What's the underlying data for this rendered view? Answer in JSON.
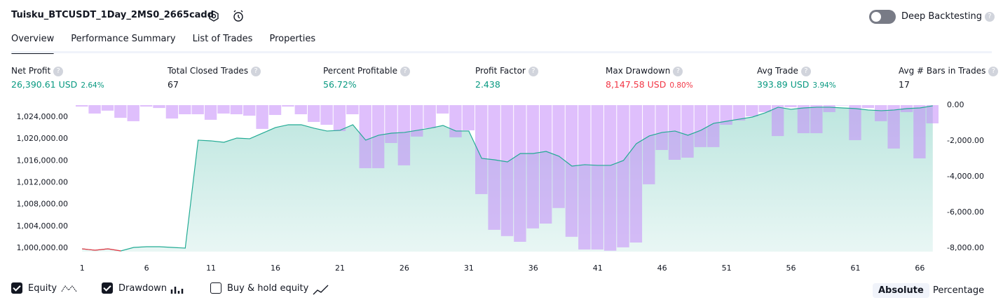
{
  "header": {
    "title": "Tuisku_BTCUSDT_1Day_2MS0_2665cadd",
    "toggle_label": "Deep Backtesting"
  },
  "tabs": [
    "Overview",
    "Performance Summary",
    "List of Trades",
    "Properties"
  ],
  "stats": [
    {
      "label": "Net Profit",
      "value": "26,390.61 USD",
      "percent": "2.64%",
      "color": "#089981"
    },
    {
      "label": "Total Closed Trades",
      "value": "67",
      "color": "#131722"
    },
    {
      "label": "Percent Profitable",
      "value": "56.72%",
      "color": "#089981"
    },
    {
      "label": "Profit Factor",
      "value": "2.438",
      "color": "#089981"
    },
    {
      "label": "Max Drawdown",
      "value": "8,147.58 USD",
      "percent": "0.80%",
      "color": "#f23645"
    },
    {
      "label": "Avg Trade",
      "value": "393.89 USD",
      "percent": "3.94%",
      "color": "#089981"
    },
    {
      "label": "Avg # Bars in Trades",
      "value": "17",
      "color": "#131722"
    }
  ],
  "chart_data": {
    "type": "line",
    "x": [
      1,
      2,
      3,
      4,
      5,
      6,
      7,
      8,
      9,
      10,
      11,
      12,
      13,
      14,
      15,
      16,
      17,
      18,
      19,
      20,
      21,
      22,
      23,
      24,
      25,
      26,
      27,
      28,
      29,
      30,
      31,
      32,
      33,
      34,
      35,
      36,
      37,
      38,
      39,
      40,
      41,
      42,
      43,
      44,
      45,
      46,
      47,
      48,
      49,
      50,
      51,
      52,
      53,
      54,
      55,
      56,
      57,
      58,
      59,
      60,
      61,
      62,
      63,
      64,
      65,
      66,
      67
    ],
    "series": [
      {
        "name": "Equity",
        "color": "#22ab94",
        "values": [
          999870,
          999620,
          999870,
          999490,
          1000130,
          1000260,
          1000260,
          1000130,
          1000000,
          1019770,
          1019640,
          1019380,
          1020150,
          1020030,
          1021050,
          1022080,
          1022590,
          1022590,
          1021950,
          1021440,
          1021570,
          1022590,
          1019770,
          1020670,
          1021050,
          1021180,
          1021570,
          1021950,
          1022460,
          1021440,
          1021440,
          1016430,
          1016170,
          1015790,
          1017330,
          1017330,
          1017710,
          1016820,
          1015020,
          1015280,
          1015150,
          1015150,
          1016050,
          1019130,
          1020540,
          1021180,
          1021440,
          1020670,
          1021570,
          1022850,
          1023230,
          1023620,
          1024000,
          1024780,
          1025800,
          1025420,
          1025670,
          1025800,
          1025800,
          1025670,
          1025550,
          1025290,
          1025160,
          1025290,
          1025550,
          1025670,
          1026060
        ]
      },
      {
        "name": "Drawdown",
        "color": "#c58af9",
        "axis": "y2",
        "type": "bar",
        "values": [
          -80,
          -470,
          -310,
          -710,
          -900,
          -80,
          -160,
          -750,
          -510,
          -510,
          -820,
          -470,
          -510,
          -590,
          -1330,
          -550,
          -80,
          -510,
          -940,
          -1100,
          -1450,
          -510,
          -3530,
          -3530,
          -2120,
          -3370,
          -1760,
          -1290,
          -470,
          -1800,
          -1410,
          -4980,
          -6980,
          -7330,
          -7650,
          -6900,
          -6630,
          -5760,
          -7370,
          -8080,
          -8080,
          -8148,
          -7960,
          -7690,
          -4430,
          -2510,
          -3060,
          -2940,
          -2350,
          -2350,
          -1100,
          -860,
          -630,
          -390,
          -1730,
          -120,
          -1570,
          -1570,
          -390,
          -20,
          -1960,
          -160,
          -900,
          -2430,
          -390,
          -2980,
          -1020
        ]
      }
    ],
    "xlim": [
      0.5,
      67.5
    ],
    "xticks": [
      1,
      6,
      11,
      16,
      21,
      26,
      31,
      36,
      41,
      46,
      51,
      56,
      61,
      66
    ],
    "ylim": [
      999360,
      1026180
    ],
    "yticks": [
      {
        "value": 1000000,
        "label": "1,000,000.00"
      },
      {
        "value": 1004000,
        "label": "1,004,000.00"
      },
      {
        "value": 1008000,
        "label": "1,008,000.00"
      },
      {
        "value": 1012000,
        "label": "1,012,000.00"
      },
      {
        "value": 1016000,
        "label": "1,016,000.00"
      },
      {
        "value": 1020000,
        "label": "1,020,000.00"
      },
      {
        "value": 1024000,
        "label": "1,024,000.00"
      }
    ],
    "y2lim": [
      -8200,
      0
    ],
    "y2ticks": [
      {
        "value": 0,
        "label": "0.00"
      },
      {
        "value": -2000,
        "label": "-2,000.00"
      },
      {
        "value": -4000,
        "label": "-4,000.00"
      },
      {
        "value": -6000,
        "label": "-6,000.00"
      },
      {
        "value": -8000,
        "label": "-8,000.00"
      }
    ],
    "loss_color": "#f23645"
  },
  "legend": [
    "Equity",
    "Drawdown",
    "Buy & hold equity"
  ],
  "modes": [
    "Absolute",
    "Percentage"
  ]
}
